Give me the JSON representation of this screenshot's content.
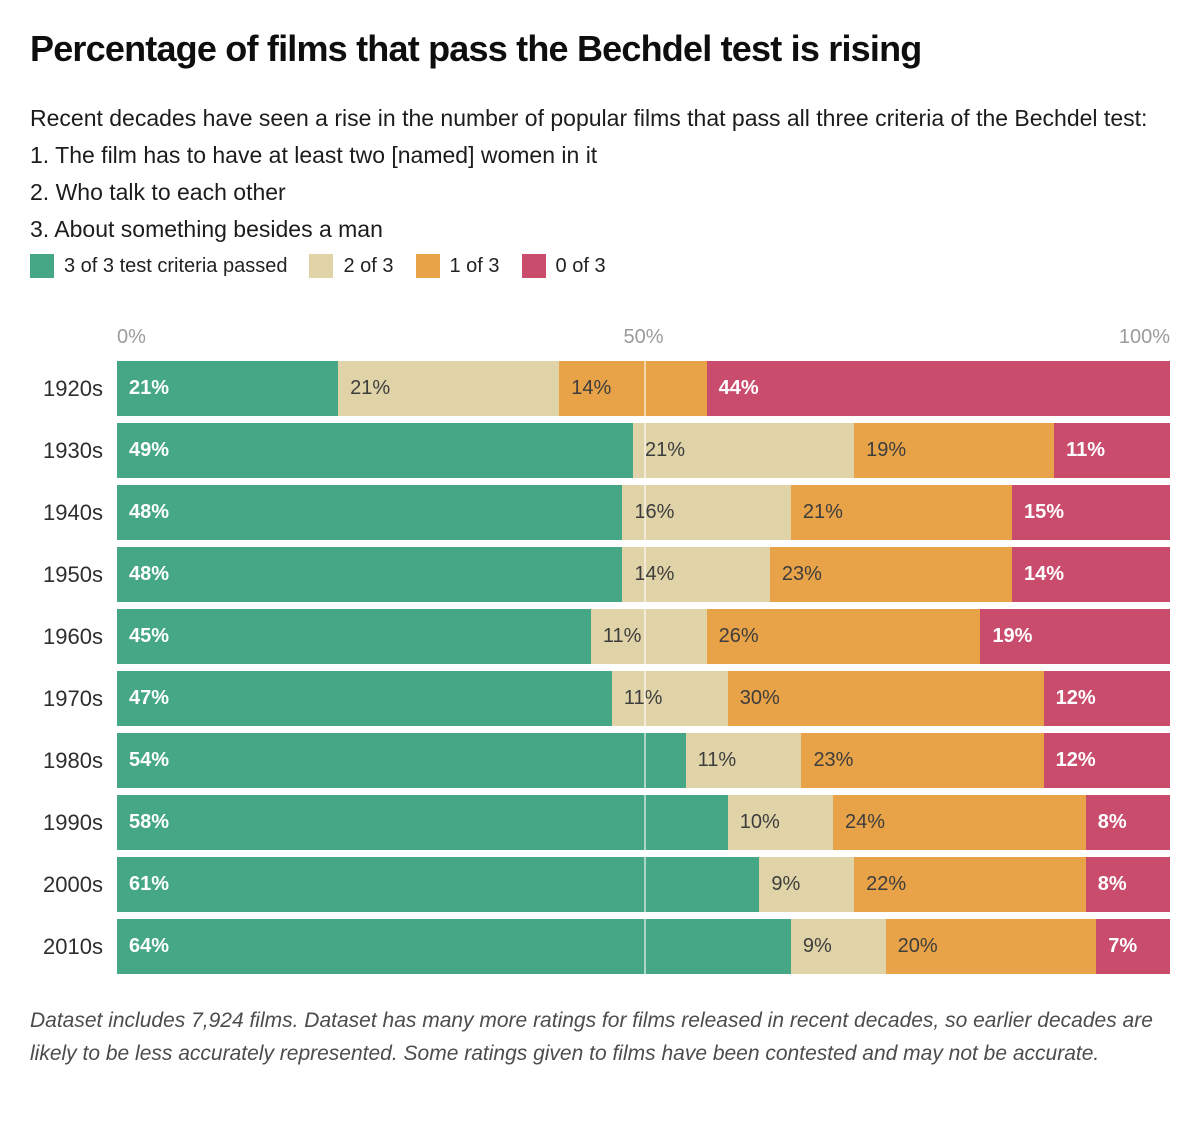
{
  "title": "Percentage of films that pass the Bechdel test is rising",
  "subtitle": {
    "intro": "Recent decades have seen a rise in the number of popular films that pass all three criteria of the Bechdel test:",
    "criteria": [
      "1. The film has to have at least two [named] women in it",
      "2. Who talk to each other",
      "3. About something besides a man"
    ]
  },
  "legend": {
    "items": [
      {
        "label": "3 of 3 test criteria passed",
        "color": "#46A787"
      },
      {
        "label": "2 of 3",
        "color": "#E0D3A8"
      },
      {
        "label": "1 of 3",
        "color": "#E8A348"
      },
      {
        "label": "0 of 3",
        "color": "#C94C6D"
      }
    ]
  },
  "axis": {
    "ticks": [
      "0%",
      "50%",
      "100%"
    ],
    "tick_color": "#9b9b9b",
    "gridline_at": 50
  },
  "chart_data": {
    "type": "bar",
    "stacked": true,
    "orientation": "horizontal",
    "value_unit": "%",
    "xlim": [
      0,
      100
    ],
    "legend_position": "top",
    "categories": [
      "1920s",
      "1930s",
      "1940s",
      "1950s",
      "1960s",
      "1970s",
      "1980s",
      "1990s",
      "2000s",
      "2010s"
    ],
    "series": [
      {
        "name": "3 of 3 test criteria passed",
        "color": "#46A787",
        "label_color": "#ffffff",
        "label_bold": true,
        "values": [
          21,
          49,
          48,
          48,
          45,
          47,
          54,
          58,
          61,
          64
        ]
      },
      {
        "name": "2 of 3",
        "color": "#E0D3A8",
        "label_color": "#3d3d3d",
        "label_bold": false,
        "values": [
          21,
          21,
          16,
          14,
          11,
          11,
          11,
          10,
          9,
          9
        ]
      },
      {
        "name": "1 of 3",
        "color": "#E8A348",
        "label_color": "#3d3d3d",
        "label_bold": false,
        "values": [
          14,
          19,
          21,
          23,
          26,
          30,
          23,
          24,
          22,
          20
        ]
      },
      {
        "name": "0 of 3",
        "color": "#C94C6D",
        "label_color": "#ffffff",
        "label_bold": true,
        "values": [
          44,
          11,
          15,
          14,
          19,
          12,
          12,
          8,
          8,
          7
        ]
      }
    ]
  },
  "footer": {
    "text": "Dataset includes 7,924 films. Dataset has many more ratings for films released in recent decades, so earlier decades are likely to be less accurately represented. Some ratings given to films have been contested and may not be accurate."
  }
}
